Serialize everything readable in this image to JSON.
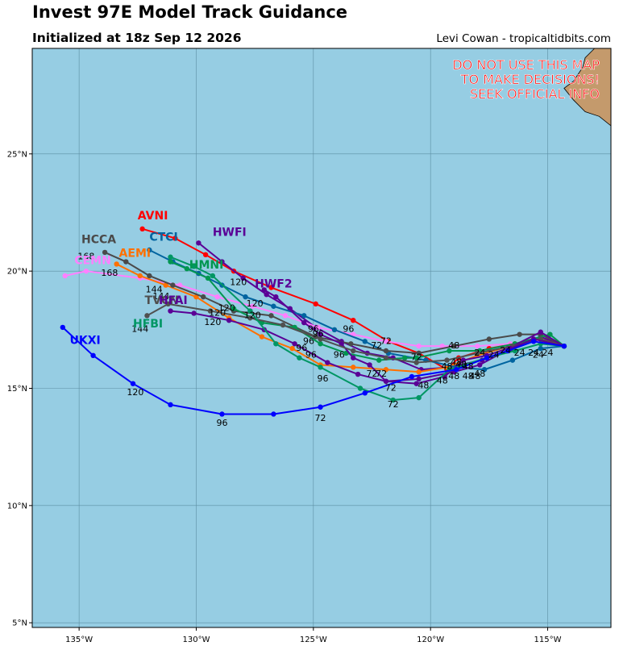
{
  "header": {
    "title": "Invest 97E Model Track Guidance",
    "subtitle": "Initialized at 18z Sep 12 2026",
    "credit": "Levi Cowan - tropicaltidbits.com"
  },
  "warning": [
    "DO NOT USE THIS MAP",
    "TO MAKE DECISIONS!",
    "SEEK OFFICIAL INFO"
  ],
  "colors": {
    "ocean": "#96cde3",
    "land": "#c49a6c",
    "grid": "#5c8ea3",
    "warning": "#ff0000"
  },
  "chart_data": {
    "type": "map-track",
    "xlim": [
      -137,
      -112.3
    ],
    "ylim": [
      4.8,
      29.5
    ],
    "x_ticks": [
      -135,
      -130,
      -125,
      -120,
      -115
    ],
    "x_tick_labels": [
      "135°W",
      "130°W",
      "125°W",
      "120°W",
      "115°W"
    ],
    "y_ticks": [
      5,
      10,
      15,
      20,
      25
    ],
    "y_tick_labels": [
      "5°N",
      "10°N",
      "15°N",
      "20°N",
      "25°N"
    ],
    "grid": true,
    "land": [
      [
        -112.3,
        29.5
      ],
      [
        -113,
        29.5
      ],
      [
        -113.4,
        29.1
      ],
      [
        -113.5,
        28.7
      ],
      [
        -113.9,
        28.1
      ],
      [
        -114.3,
        27.8
      ],
      [
        -113.9,
        27.3
      ],
      [
        -113.4,
        26.8
      ],
      [
        -112.8,
        26.6
      ],
      [
        -112.3,
        26.2
      ]
    ],
    "series": [
      {
        "name": "AVNI",
        "color": "#ff0000",
        "points": [
          [
            -114.3,
            16.8
          ],
          [
            -115.3,
            17.1
          ],
          [
            -116.4,
            16.9
          ],
          [
            -117.5,
            16.7
          ],
          [
            -118.8,
            16.3
          ],
          [
            -119.3,
            15.8
          ],
          [
            -120.5,
            16.5
          ],
          [
            -121.8,
            17.0
          ],
          [
            -123.3,
            17.9
          ],
          [
            -124.9,
            18.6
          ],
          [
            -126.8,
            19.3
          ],
          [
            -128.4,
            20.0
          ],
          [
            -129.6,
            20.7
          ],
          [
            -130.9,
            21.4
          ],
          [
            -132.3,
            21.8
          ]
        ],
        "hour_labels": [],
        "label_pos": [
          -132.5,
          22.2
        ]
      },
      {
        "name": "HWFI",
        "color": "#5a0096",
        "points": [
          [
            -114.3,
            16.8
          ],
          [
            -115.3,
            17.2
          ],
          [
            -116.5,
            16.7
          ],
          [
            -117.8,
            16.2
          ],
          [
            -119.2,
            15.9
          ],
          [
            -120.4,
            15.8
          ],
          [
            -121.6,
            16.3
          ],
          [
            -122.7,
            16.5
          ],
          [
            -123.8,
            17.0
          ],
          [
            -124.9,
            17.6
          ],
          [
            -126.0,
            18.4
          ],
          [
            -127.0,
            19.0
          ],
          [
            -128.0,
            19.7
          ],
          [
            -128.9,
            20.4
          ],
          [
            -129.9,
            21.2
          ]
        ],
        "hour_labels": [
          [
            "72",
            -120.6,
            16.2
          ],
          [
            "96",
            -124.8,
            17.2
          ],
          [
            "120",
            -128.2,
            19.4
          ]
        ],
        "label_pos": [
          -129.3,
          21.5
        ]
      },
      {
        "name": "CEMN",
        "color": "#ff80ff",
        "points": [
          [
            -114.3,
            16.8
          ],
          [
            -115.3,
            17.0
          ],
          [
            -116.6,
            16.9
          ],
          [
            -118.0,
            16.8
          ],
          [
            -119.5,
            16.8
          ],
          [
            -120.5,
            16.8
          ],
          [
            -121.9,
            17.0
          ],
          [
            -123.3,
            17.3
          ],
          [
            -124.8,
            17.6
          ],
          [
            -126.2,
            18.1
          ],
          [
            -127.6,
            18.5
          ],
          [
            -129.1,
            18.9
          ],
          [
            -130.7,
            19.4
          ],
          [
            -132.4,
            19.7
          ],
          [
            -134.7,
            20.0
          ],
          [
            -135.6,
            19.8
          ]
        ],
        "hour_labels": [],
        "label_pos": [
          -135.2,
          20.3
        ]
      },
      {
        "name": "AEMI",
        "color": "#ff7000",
        "points": [
          [
            -114.3,
            16.8
          ],
          [
            -115.3,
            17.1
          ],
          [
            -116.6,
            16.8
          ],
          [
            -118.0,
            16.4
          ],
          [
            -119.3,
            15.9
          ],
          [
            -120.5,
            15.7
          ],
          [
            -121.9,
            15.8
          ],
          [
            -123.3,
            15.9
          ],
          [
            -124.7,
            16.0
          ],
          [
            -125.9,
            16.7
          ],
          [
            -127.2,
            17.2
          ],
          [
            -128.6,
            18.0
          ],
          [
            -130.0,
            18.9
          ],
          [
            -131.3,
            19.4
          ],
          [
            -132.4,
            19.8
          ],
          [
            -133.4,
            20.3
          ]
        ],
        "hour_labels": [
          [
            "72",
            -122.1,
            15.5
          ],
          [
            "96",
            -125.1,
            16.3
          ],
          [
            "120",
            -128.7,
            18.3
          ],
          [
            "144",
            -131.8,
            19.1
          ],
          [
            "168",
            -133.7,
            19.8
          ]
        ],
        "label_pos": [
          -133.3,
          20.6
        ]
      },
      {
        "name": "CTCI",
        "color": "#0064a0",
        "points": [
          [
            -114.3,
            16.8
          ],
          [
            -115.3,
            16.7
          ],
          [
            -116.5,
            16.2
          ],
          [
            -117.7,
            15.8
          ],
          [
            -118.9,
            15.9
          ],
          [
            -120.2,
            16.2
          ],
          [
            -121.8,
            16.5
          ],
          [
            -122.8,
            17.0
          ],
          [
            -124.1,
            17.5
          ],
          [
            -125.4,
            18.1
          ],
          [
            -126.7,
            18.5
          ],
          [
            -127.9,
            18.9
          ],
          [
            -128.9,
            19.4
          ],
          [
            -129.9,
            19.9
          ],
          [
            -131.0,
            20.4
          ],
          [
            -132.0,
            20.9
          ]
        ],
        "hour_labels": [
          [
            "48",
            -118.4,
            15.4
          ],
          [
            "96",
            -123.5,
            17.4
          ],
          [
            "120",
            -127.5,
            18.5
          ]
        ],
        "label_pos": [
          -132.0,
          21.3
        ]
      },
      {
        "name": "HCCA",
        "color": "#4a4a4a",
        "points": [
          [
            -114.3,
            16.8
          ],
          [
            -115.3,
            17.3
          ],
          [
            -116.2,
            17.3
          ],
          [
            -117.5,
            17.1
          ],
          [
            -119.0,
            16.8
          ],
          [
            -120.5,
            16.5
          ],
          [
            -121.9,
            16.6
          ],
          [
            -123.4,
            16.9
          ],
          [
            -124.9,
            17.2
          ],
          [
            -126.8,
            18.1
          ],
          [
            -128.4,
            18.3
          ],
          [
            -129.7,
            18.9
          ],
          [
            -131.0,
            19.4
          ],
          [
            -132.0,
            19.8
          ],
          [
            -133.0,
            20.4
          ],
          [
            -133.9,
            20.8
          ]
        ],
        "hour_labels": [
          [
            "72",
            -121.9,
            16.9
          ],
          [
            "96",
            -125.0,
            17.4
          ],
          [
            "144",
            -131.5,
            18.8
          ],
          [
            "168",
            -134.7,
            20.5
          ]
        ],
        "label_pos": [
          -134.9,
          21.2
        ]
      },
      {
        "name": "HMNI",
        "color": "#009650",
        "points": [
          [
            -114.3,
            16.8
          ],
          [
            -114.9,
            17.3
          ],
          [
            -116.4,
            16.9
          ],
          [
            -117.9,
            16.6
          ],
          [
            -119.2,
            16.6
          ],
          [
            -120.6,
            16.3
          ],
          [
            -121.1,
            16.3
          ],
          [
            -122.2,
            16.2
          ],
          [
            -123.6,
            16.5
          ],
          [
            -124.7,
            16.9
          ],
          [
            -125.8,
            17.6
          ],
          [
            -127.2,
            17.8
          ],
          [
            -128.4,
            18.4
          ],
          [
            -129.5,
            19.7
          ],
          [
            -130.4,
            20.1
          ],
          [
            -131.1,
            20.4
          ]
        ],
        "hour_labels": [
          [
            "24",
            -115.4,
            16.3
          ],
          [
            "48",
            -119.0,
            16.7
          ]
        ],
        "label_pos": [
          -130.3,
          20.1
        ]
      },
      {
        "name": "HWF2",
        "color": "#5a0096",
        "points": [
          [
            -114.3,
            16.8
          ],
          [
            -115.3,
            17.4
          ],
          [
            -116.7,
            16.7
          ],
          [
            -117.6,
            16.4
          ],
          [
            -118.6,
            16.2
          ],
          [
            -119.4,
            15.5
          ],
          [
            -120.6,
            15.2
          ],
          [
            -121.9,
            15.3
          ],
          [
            -122.6,
            16.0
          ],
          [
            -123.3,
            16.3
          ],
          [
            -123.8,
            16.9
          ],
          [
            -124.7,
            17.3
          ],
          [
            -125.4,
            17.8
          ],
          [
            -126.6,
            18.9
          ],
          [
            -127.1,
            19.2
          ]
        ],
        "hour_labels": [
          [
            "48",
            -119.0,
            15.4
          ],
          [
            "72",
            -121.7,
            14.9
          ],
          [
            "96",
            -123.9,
            16.3
          ]
        ],
        "label_pos": [
          -127.5,
          19.3
        ]
      },
      {
        "name": "TVCN",
        "color": "#505050",
        "points": [
          [
            -114.3,
            16.8
          ],
          [
            -115.3,
            17.1
          ],
          [
            -116.5,
            16.8
          ],
          [
            -118.0,
            16.5
          ],
          [
            -119.3,
            16.2
          ],
          [
            -120.6,
            16.1
          ],
          [
            -121.9,
            16.3
          ],
          [
            -123.3,
            16.6
          ],
          [
            -124.7,
            17.1
          ],
          [
            -126.3,
            17.7
          ],
          [
            -127.7,
            18.0
          ],
          [
            -129.4,
            18.3
          ],
          [
            -131.2,
            18.6
          ],
          [
            -132.1,
            18.1
          ]
        ],
        "hour_labels": [
          [
            "72",
            -122.3,
            16.7
          ],
          [
            "96",
            -125.2,
            16.9
          ],
          [
            "120",
            -129.1,
            18.1
          ],
          [
            "144",
            -132.4,
            17.4
          ]
        ],
        "label_pos": [
          -132.2,
          18.6
        ]
      },
      {
        "name": "HFAI",
        "color": "#5a0096",
        "points": [
          [
            -114.3,
            16.8
          ],
          [
            -115.6,
            17.1
          ],
          [
            -116.6,
            16.7
          ],
          [
            -117.9,
            16.0
          ],
          [
            -119.0,
            15.7
          ],
          [
            -120.5,
            15.4
          ],
          [
            -121.9,
            15.3
          ],
          [
            -123.1,
            15.6
          ],
          [
            -124.4,
            16.1
          ],
          [
            -125.8,
            16.9
          ],
          [
            -127.1,
            17.5
          ],
          [
            -128.6,
            17.9
          ],
          [
            -130.1,
            18.2
          ],
          [
            -131.1,
            18.3
          ]
        ],
        "hour_labels": [
          [
            "48",
            -119.5,
            15.2
          ],
          [
            "72",
            -122.5,
            15.5
          ],
          [
            "96",
            -125.5,
            16.6
          ],
          [
            "120",
            -129.3,
            17.7
          ]
        ],
        "label_pos": [
          -131.6,
          18.6
        ]
      },
      {
        "name": "HFBI",
        "color": "#009664",
        "points": [
          [
            -114.3,
            16.8
          ],
          [
            -115.3,
            16.9
          ],
          [
            -116.4,
            16.6
          ],
          [
            -117.6,
            16.3
          ],
          [
            -119.2,
            15.8
          ],
          [
            -120.5,
            14.6
          ],
          [
            -121.6,
            14.5
          ],
          [
            -123.0,
            15.0
          ],
          [
            -124.7,
            15.9
          ],
          [
            -125.6,
            16.3
          ],
          [
            -126.6,
            16.9
          ],
          [
            -127.7,
            18.3
          ],
          [
            -129.3,
            19.8
          ],
          [
            -130.1,
            20.2
          ],
          [
            -131.1,
            20.6
          ]
        ],
        "hour_labels": [
          [
            "48",
            -120.3,
            15.0
          ],
          [
            "72",
            -121.6,
            14.2
          ],
          [
            "96",
            -124.6,
            15.3
          ],
          [
            "120",
            -127.6,
            18.0
          ]
        ],
        "label_pos": [
          -132.7,
          17.6
        ]
      },
      {
        "name": "UKXI",
        "color": "#0000ff",
        "points": [
          [
            -114.3,
            16.8
          ],
          [
            -115.6,
            17.0
          ],
          [
            -116.7,
            16.6
          ],
          [
            -117.6,
            16.3
          ],
          [
            -118.9,
            15.8
          ],
          [
            -120.8,
            15.5
          ],
          [
            -122.8,
            14.8
          ],
          [
            -124.7,
            14.2
          ],
          [
            -126.7,
            13.9
          ],
          [
            -128.9,
            13.9
          ],
          [
            -131.1,
            14.3
          ],
          [
            -132.7,
            15.2
          ],
          [
            -134.4,
            16.4
          ],
          [
            -135.7,
            17.6
          ]
        ],
        "hour_labels": [
          [
            "48",
            -118.1,
            15.4
          ],
          [
            "72",
            -124.7,
            13.6
          ],
          [
            "96",
            -128.9,
            13.4
          ],
          [
            "120",
            -132.6,
            14.7
          ]
        ],
        "label_pos": [
          -135.4,
          16.9
        ]
      }
    ],
    "extra_hour_labels": [
      [
        "24",
        -115.0,
        16.4
      ],
      [
        "24",
        -115.6,
        16.4
      ],
      [
        "24",
        -116.2,
        16.4
      ],
      [
        "24",
        -116.8,
        16.5
      ],
      [
        "24",
        -117.3,
        16.3
      ],
      [
        "24",
        -117.9,
        16.4
      ],
      [
        "48",
        -117.9,
        15.5
      ],
      [
        "48",
        -118.4,
        15.8
      ],
      [
        "48",
        -118.7,
        15.9
      ],
      [
        "48",
        -118.9,
        16.0
      ],
      [
        "48",
        -119.3,
        15.8
      ]
    ]
  }
}
